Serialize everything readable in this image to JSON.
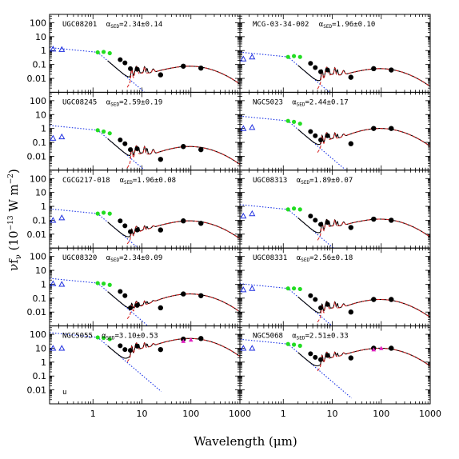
{
  "chart_data": {
    "type": "scatter",
    "xlabel": "Wavelength (μm)",
    "ylabel": "νf_ν (10^-13 W m^-2)",
    "x_scale": "log",
    "y_scale": "log",
    "xlim": [
      0.13,
      1000
    ],
    "ylim": [
      0.001,
      400
    ],
    "x_ticks": [
      "1",
      "10",
      "100",
      "1000"
    ],
    "y_ticks": [
      "0.01",
      "0.1",
      "1",
      "10",
      "100"
    ],
    "extra_mark": "u",
    "panels": [
      {
        "name": "UGC08201",
        "alpha": "2.34±0.14",
        "uv": [
          [
            0.153,
            1.3
          ],
          [
            0.231,
            1.2
          ]
        ],
        "nir": [
          [
            1.25,
            0.75
          ],
          [
            1.65,
            0.8
          ],
          [
            2.2,
            0.65
          ]
        ],
        "mir": [
          [
            3.6,
            0.22
          ],
          [
            4.5,
            0.13
          ],
          [
            5.8,
            0.05
          ],
          [
            8.0,
            0.045
          ]
        ],
        "fir": [
          [
            24,
            0.018
          ],
          [
            70,
            0.075
          ],
          [
            160,
            0.055
          ]
        ]
      },
      {
        "name": "MCG-03-34-002",
        "alpha": "1.96±0.10",
        "uv": [
          [
            0.153,
            0.25
          ],
          [
            0.231,
            0.35
          ]
        ],
        "nir": [
          [
            1.25,
            0.35
          ],
          [
            1.65,
            0.4
          ],
          [
            2.2,
            0.35
          ]
        ],
        "mir": [
          [
            3.6,
            0.12
          ],
          [
            4.5,
            0.06
          ],
          [
            5.8,
            0.03
          ],
          [
            8.0,
            0.04
          ]
        ],
        "fir": [
          [
            24,
            0.012
          ],
          [
            70,
            0.05
          ],
          [
            160,
            0.04
          ]
        ]
      },
      {
        "name": "UGC08245",
        "alpha": "2.59±0.19",
        "uv": [
          [
            0.153,
            0.2
          ],
          [
            0.231,
            0.25
          ]
        ],
        "nir": [
          [
            1.25,
            0.75
          ],
          [
            1.65,
            0.6
          ],
          [
            2.2,
            0.45
          ]
        ],
        "mir": [
          [
            3.6,
            0.15
          ],
          [
            4.5,
            0.08
          ],
          [
            5.8,
            0.03
          ],
          [
            8.0,
            0.035
          ]
        ],
        "fir": [
          [
            24,
            0.006
          ],
          [
            70,
            0.05
          ],
          [
            160,
            0.03
          ]
        ]
      },
      {
        "name": "NGC5023",
        "alpha": "2.44±0.17",
        "uv": [
          [
            0.153,
            1.0
          ],
          [
            0.231,
            1.2
          ]
        ],
        "nir": [
          [
            1.25,
            3.5
          ],
          [
            1.65,
            3.0
          ],
          [
            2.2,
            2.2
          ]
        ],
        "mir": [
          [
            3.6,
            0.6
          ],
          [
            4.5,
            0.3
          ],
          [
            5.8,
            0.15
          ],
          [
            8.0,
            0.3
          ]
        ],
        "fir": [
          [
            24,
            0.08
          ],
          [
            70,
            1.0
          ],
          [
            160,
            1.0
          ]
        ]
      },
      {
        "name": "CGCG217-018",
        "alpha": "1.96±0.08",
        "uv": [
          [
            0.153,
            0.1
          ],
          [
            0.231,
            0.15
          ]
        ],
        "nir": [
          [
            1.25,
            0.3
          ],
          [
            1.65,
            0.35
          ],
          [
            2.2,
            0.3
          ]
        ],
        "mir": [
          [
            3.6,
            0.09
          ],
          [
            4.5,
            0.04
          ],
          [
            5.8,
            0.015
          ],
          [
            8.0,
            0.02
          ]
        ],
        "fir": [
          [
            24,
            0.02
          ],
          [
            70,
            0.09
          ],
          [
            160,
            0.06
          ]
        ]
      },
      {
        "name": "UGC08313",
        "alpha": "1.89±0.07",
        "uv": [
          [
            0.153,
            0.2
          ],
          [
            0.231,
            0.3
          ]
        ],
        "nir": [
          [
            1.25,
            0.6
          ],
          [
            1.65,
            0.7
          ],
          [
            2.2,
            0.6
          ]
        ],
        "mir": [
          [
            3.6,
            0.2
          ],
          [
            4.5,
            0.1
          ],
          [
            5.8,
            0.05
          ],
          [
            8.0,
            0.07
          ]
        ],
        "fir": [
          [
            24,
            0.03
          ],
          [
            70,
            0.12
          ],
          [
            160,
            0.1
          ]
        ]
      },
      {
        "name": "UGC08320",
        "alpha": "2.34±0.09",
        "uv": [
          [
            0.153,
            1.1
          ],
          [
            0.231,
            1.0
          ]
        ],
        "nir": [
          [
            1.25,
            1.2
          ],
          [
            1.65,
            1.1
          ],
          [
            2.2,
            0.9
          ]
        ],
        "mir": [
          [
            3.6,
            0.3
          ],
          [
            4.5,
            0.15
          ],
          [
            5.8,
            0.02
          ],
          [
            8.0,
            0.03
          ]
        ],
        "fir": [
          [
            24,
            0.02
          ],
          [
            70,
            0.2
          ],
          [
            160,
            0.15
          ]
        ]
      },
      {
        "name": "UGC08331",
        "alpha": "2.56±0.18",
        "uv": [
          [
            0.153,
            0.4
          ],
          [
            0.231,
            0.5
          ]
        ],
        "nir": [
          [
            1.25,
            0.5
          ],
          [
            1.65,
            0.5
          ],
          [
            2.2,
            0.45
          ]
        ],
        "mir": [
          [
            3.6,
            0.15
          ],
          [
            4.5,
            0.08
          ],
          [
            5.8,
            0.02
          ],
          [
            8.0,
            0.035
          ]
        ],
        "fir": [
          [
            24,
            0.01
          ],
          [
            70,
            0.08
          ],
          [
            160,
            0.08
          ]
        ]
      },
      {
        "name": "NGC5055",
        "alpha": "3.10±0.53",
        "uv": [
          [
            0.153,
            10
          ],
          [
            0.231,
            10
          ]
        ],
        "nir": [
          [
            1.25,
            60
          ],
          [
            1.65,
            55
          ],
          [
            2.2,
            45
          ]
        ],
        "mir": [
          [
            3.6,
            15
          ],
          [
            4.5,
            8
          ],
          [
            5.8,
            7
          ],
          [
            8.0,
            14
          ]
        ],
        "fir": [
          [
            24,
            8
          ],
          [
            70,
            45
          ],
          [
            160,
            50
          ]
        ],
        "extra": [
          [
            70,
            32
          ],
          [
            100,
            40
          ]
        ]
      },
      {
        "name": "NGC5068",
        "alpha": "2.51±0.33",
        "uv": [
          [
            0.153,
            10
          ],
          [
            0.231,
            10
          ]
        ],
        "nir": [
          [
            1.25,
            20
          ],
          [
            1.65,
            18
          ],
          [
            2.2,
            15
          ]
        ],
        "mir": [
          [
            3.6,
            4
          ],
          [
            4.5,
            2.2
          ],
          [
            5.8,
            1.5
          ],
          [
            8.0,
            3
          ]
        ],
        "fir": [
          [
            24,
            2
          ],
          [
            70,
            10
          ],
          [
            160,
            10
          ]
        ],
        "extra": [
          [
            70,
            8
          ],
          [
            100,
            10
          ]
        ]
      }
    ]
  }
}
